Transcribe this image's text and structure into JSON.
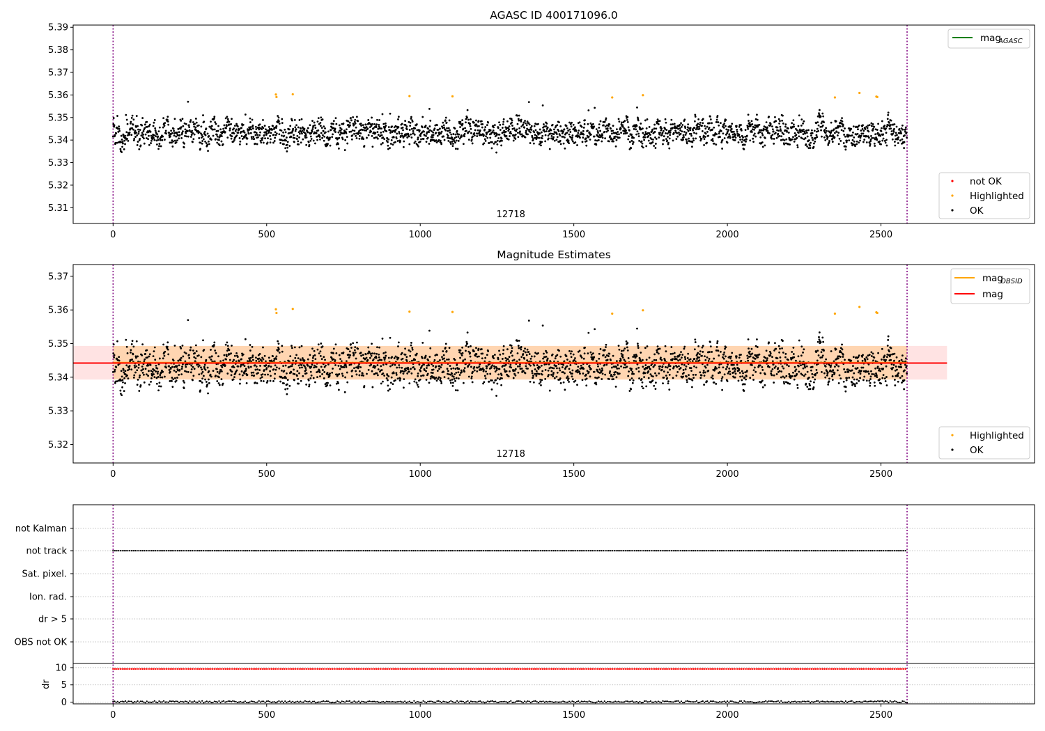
{
  "chart_data": [
    {
      "type": "scatter",
      "title": "AGASC ID 400171096.0",
      "annotation": "12718",
      "xlim": [
        -130,
        3000
      ],
      "ylim": [
        5.303,
        5.391
      ],
      "xticks": [
        0,
        500,
        1000,
        1500,
        2000,
        2500
      ],
      "yticks": [
        5.31,
        5.32,
        5.33,
        5.34,
        5.35,
        5.36,
        5.37,
        5.38,
        5.39
      ],
      "vlines": [
        0,
        2585
      ],
      "line_legend": {
        "mag_base": "mag",
        "mag_sub": "AGASC",
        "color": "#008000"
      },
      "point_legend": [
        {
          "name": "not OK",
          "color": "#ff0000"
        },
        {
          "name": "Highlighted",
          "color": "#ffa500"
        },
        {
          "name": "OK",
          "color": "#000000"
        }
      ],
      "highlighted_points": [
        [
          530,
          5.3602
        ],
        [
          532,
          5.3591
        ],
        [
          585,
          5.3603
        ],
        [
          965,
          5.3595
        ],
        [
          1105,
          5.3594
        ],
        [
          1625,
          5.3589
        ],
        [
          1725,
          5.3599
        ],
        [
          2350,
          5.3589
        ],
        [
          2430,
          5.3609
        ],
        [
          2485,
          5.3593
        ],
        [
          2488,
          5.3591
        ]
      ],
      "ok_summary": {
        "n": 2585,
        "x_range": [
          0,
          2585
        ],
        "median": 5.3435,
        "spread": 0.0085,
        "min": 5.333,
        "max": 5.358
      }
    },
    {
      "type": "scatter",
      "title": "Magnitude Estimates",
      "annotation": "12718",
      "xlim": [
        -130,
        3000
      ],
      "ylim": [
        5.3145,
        5.3735
      ],
      "xticks": [
        0,
        500,
        1000,
        1500,
        2000,
        2500
      ],
      "yticks": [
        5.32,
        5.33,
        5.34,
        5.35,
        5.36,
        5.37
      ],
      "vlines": [
        0,
        2585
      ],
      "line_legend": [
        {
          "mag_base": "mag",
          "mag_sub": "OBSID",
          "color": "#ffa500"
        },
        {
          "name": "mag",
          "color": "#ff0000"
        }
      ],
      "mag_line": {
        "value": 5.3442,
        "x_range": [
          -130,
          2715
        ]
      },
      "mag_band": [
        5.3393,
        5.3493
      ],
      "point_legend": [
        {
          "name": "Highlighted",
          "color": "#ffa500"
        },
        {
          "name": "OK",
          "color": "#000000"
        }
      ],
      "highlighted_points": [
        [
          530,
          5.3602
        ],
        [
          532,
          5.3591
        ],
        [
          585,
          5.3603
        ],
        [
          965,
          5.3595
        ],
        [
          1105,
          5.3594
        ],
        [
          1625,
          5.3589
        ],
        [
          1725,
          5.3599
        ],
        [
          2350,
          5.3589
        ],
        [
          2430,
          5.3609
        ],
        [
          2485,
          5.3593
        ],
        [
          2488,
          5.3591
        ]
      ]
    },
    {
      "type": "scatter",
      "title": "",
      "xlim": [
        -130,
        3000
      ],
      "xticks": [
        0,
        500,
        1000,
        1500,
        2000,
        2500
      ],
      "flag_categories": [
        "not Kalman",
        "not track",
        "Sat. pixel.",
        "Ion. rad.",
        "dr > 5",
        "OBS not OK"
      ],
      "flags_set": {
        "not track": [
          0,
          2585
        ]
      }
    },
    {
      "type": "scatter",
      "title": "",
      "ylabel": "dr",
      "xlim": [
        -130,
        3000
      ],
      "ylim": [
        -0.5,
        11.2
      ],
      "yticks": [
        0,
        5,
        10
      ],
      "xticks": [
        0,
        500,
        1000,
        1500,
        2000,
        2500
      ],
      "threshold_points": {
        "value": 9.6,
        "x_range": [
          0,
          2585
        ],
        "color": "#ff0000"
      },
      "dr_points": {
        "value": 0.1,
        "x_range": [
          0,
          2585
        ],
        "color": "#000000"
      }
    }
  ]
}
